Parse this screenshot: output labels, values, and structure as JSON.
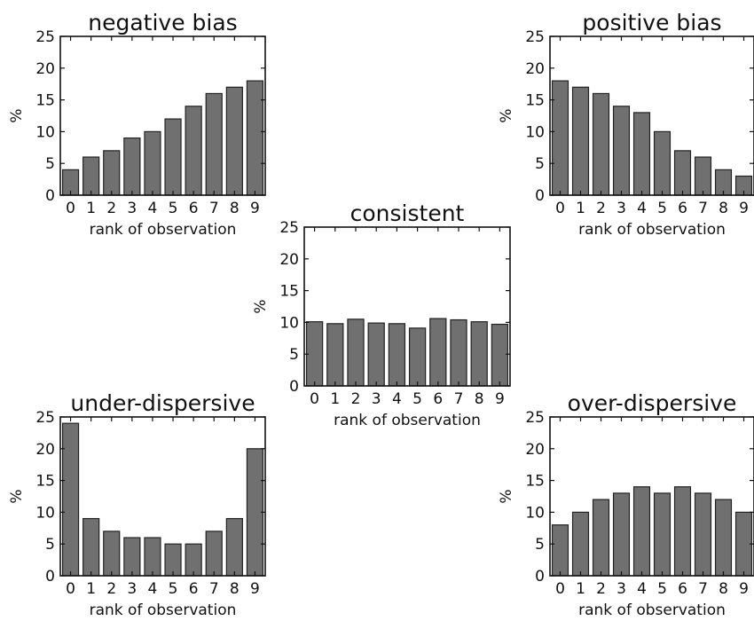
{
  "chart_data": [
    {
      "type": "bar",
      "title": "negative bias",
      "xlabel": "rank of observation",
      "ylabel": "%",
      "categories": [
        "0",
        "1",
        "2",
        "3",
        "4",
        "5",
        "6",
        "7",
        "8",
        "9"
      ],
      "values": [
        4,
        6,
        7,
        9,
        10,
        12,
        14,
        16,
        17,
        18
      ],
      "ylim": [
        0,
        25
      ],
      "yticks": [
        0,
        5,
        10,
        15,
        20,
        25
      ],
      "bar_color": "#707070"
    },
    {
      "type": "bar",
      "title": "positive bias",
      "xlabel": "rank of observation",
      "ylabel": "%",
      "categories": [
        "0",
        "1",
        "2",
        "3",
        "4",
        "5",
        "6",
        "7",
        "8",
        "9"
      ],
      "values": [
        18,
        17,
        16,
        14,
        13,
        10,
        7,
        6,
        4,
        3
      ],
      "ylim": [
        0,
        25
      ],
      "yticks": [
        0,
        5,
        10,
        15,
        20,
        25
      ],
      "bar_color": "#707070"
    },
    {
      "type": "bar",
      "title": "consistent",
      "xlabel": "rank of observation",
      "ylabel": "%",
      "categories": [
        "0",
        "1",
        "2",
        "3",
        "4",
        "5",
        "6",
        "7",
        "8",
        "9"
      ],
      "values": [
        10.1,
        9.8,
        10.5,
        9.9,
        9.8,
        9.1,
        10.6,
        10.4,
        10.1,
        9.7
      ],
      "ylim": [
        0,
        25
      ],
      "yticks": [
        0,
        5,
        10,
        15,
        20,
        25
      ],
      "bar_color": "#707070"
    },
    {
      "type": "bar",
      "title": "under-dispersive",
      "xlabel": "rank of observation",
      "ylabel": "%",
      "categories": [
        "0",
        "1",
        "2",
        "3",
        "4",
        "5",
        "6",
        "7",
        "8",
        "9"
      ],
      "values": [
        24,
        9,
        7,
        6,
        6,
        5,
        5,
        7,
        9,
        20
      ],
      "ylim": [
        0,
        25
      ],
      "yticks": [
        0,
        5,
        10,
        15,
        20,
        25
      ],
      "bar_color": "#707070"
    },
    {
      "type": "bar",
      "title": "over-dispersive",
      "xlabel": "rank of observation",
      "ylabel": "%",
      "categories": [
        "0",
        "1",
        "2",
        "3",
        "4",
        "5",
        "6",
        "7",
        "8",
        "9"
      ],
      "values": [
        8,
        10,
        12,
        13,
        14,
        13,
        14,
        13,
        12,
        10
      ],
      "ylim": [
        0,
        25
      ],
      "yticks": [
        0,
        5,
        10,
        15,
        20,
        25
      ],
      "bar_color": "#707070"
    }
  ]
}
